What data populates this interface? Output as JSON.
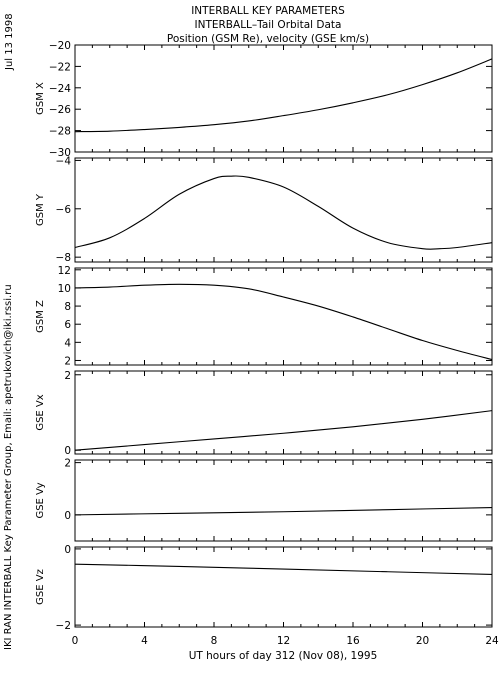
{
  "header": {
    "date": "Jul 13 1998",
    "title_lines": [
      "INTERBALL KEY PARAMETERS",
      "INTERBALL–Tail Orbital Data",
      "Position (GSM Re), velocity (GSE km/s)"
    ]
  },
  "credit": "IKI RAN INTERBALL Key Parameter Group, Email: apetrukovich@iki.rssi.ru",
  "xaxis": {
    "label": "UT hours of day 312 (Nov 08), 1995",
    "range": [
      0,
      24
    ],
    "ticks": [
      0,
      4,
      8,
      12,
      16,
      20,
      24
    ],
    "tick_labels": [
      "0",
      "4",
      "8",
      "12",
      "16",
      "20",
      "24"
    ]
  },
  "chart_data": [
    {
      "type": "line",
      "ylabel": "GSM X",
      "ylim": [
        -30,
        -20
      ],
      "yticks": [
        -30,
        -28,
        -26,
        -24,
        -22,
        -20
      ],
      "ytick_labels": [
        "−30",
        "−28",
        "−26",
        "−24",
        "−22",
        "−20"
      ],
      "x": [
        0,
        2,
        4,
        6,
        8,
        10,
        12,
        14,
        16,
        18,
        20,
        22,
        24
      ],
      "y": [
        -28.1,
        -28.05,
        -27.9,
        -27.7,
        -27.45,
        -27.1,
        -26.6,
        -26.05,
        -25.4,
        -24.65,
        -23.7,
        -22.6,
        -21.3
      ]
    },
    {
      "type": "line",
      "ylabel": "GSM Y",
      "ylim": [
        -8.2,
        -3.9
      ],
      "yticks": [
        -8,
        -6,
        -4
      ],
      "ytick_labels": [
        "−8",
        "−6",
        "−4"
      ],
      "x": [
        0,
        2,
        4,
        6,
        8,
        9,
        10,
        12,
        14,
        16,
        18,
        20,
        21,
        22,
        24
      ],
      "y": [
        -7.6,
        -7.2,
        -6.4,
        -5.4,
        -4.75,
        -4.65,
        -4.7,
        -5.1,
        -5.9,
        -6.8,
        -7.4,
        -7.65,
        -7.65,
        -7.6,
        -7.4
      ]
    },
    {
      "type": "line",
      "ylabel": "GSM Z",
      "ylim": [
        1.5,
        12.2
      ],
      "yticks": [
        2,
        4,
        6,
        8,
        10,
        12
      ],
      "ytick_labels": [
        "2",
        "4",
        "6",
        "8",
        "10",
        "12"
      ],
      "x": [
        0,
        2,
        4,
        6,
        8,
        10,
        12,
        14,
        16,
        18,
        20,
        22,
        24
      ],
      "y": [
        10.0,
        10.1,
        10.3,
        10.4,
        10.3,
        9.9,
        9.0,
        8.0,
        6.8,
        5.5,
        4.2,
        3.1,
        2.1
      ]
    },
    {
      "type": "line",
      "ylabel": "GSE Vx",
      "ylim": [
        -0.1,
        2.1
      ],
      "yticks": [
        0,
        2
      ],
      "ytick_labels": [
        "0",
        "2"
      ],
      "x": [
        0,
        4,
        8,
        12,
        16,
        20,
        24
      ],
      "y": [
        0.0,
        0.15,
        0.3,
        0.45,
        0.62,
        0.82,
        1.05
      ]
    },
    {
      "type": "line",
      "ylabel": "GSE Vy",
      "ylim": [
        -1.0,
        2.1
      ],
      "yticks": [
        0,
        2
      ],
      "ytick_labels": [
        "0",
        "2"
      ],
      "x": [
        0,
        6,
        12,
        18,
        24
      ],
      "y": [
        0.0,
        0.06,
        0.12,
        0.2,
        0.28
      ]
    },
    {
      "type": "line",
      "ylabel": "GSE Vz",
      "ylim": [
        -2.05,
        0.05
      ],
      "yticks": [
        -2,
        0
      ],
      "ytick_labels": [
        "−2",
        "0"
      ],
      "x": [
        0,
        6,
        12,
        18,
        24
      ],
      "y": [
        -0.4,
        -0.46,
        -0.53,
        -0.6,
        -0.67
      ]
    }
  ]
}
